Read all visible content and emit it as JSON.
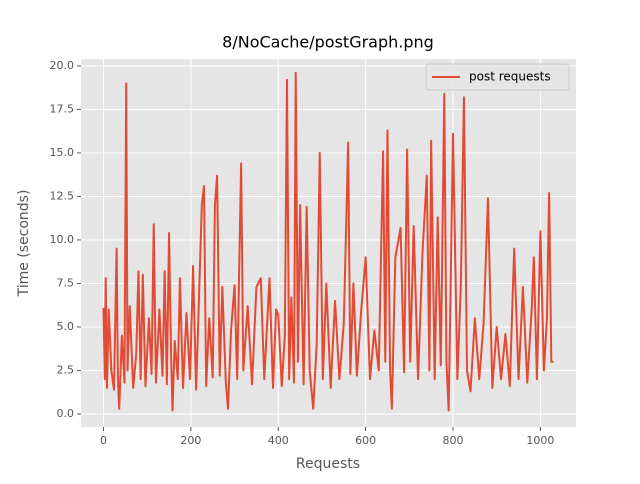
{
  "chart_data": {
    "type": "line",
    "title": "8/NoCache/postGraph.png",
    "x_label": "Requests",
    "y_label": "Time (seconds)",
    "xlim": [
      -51.5,
      1081.5
    ],
    "ylim": [
      -0.75,
      20.4
    ],
    "xticks": [
      0,
      200,
      400,
      600,
      800,
      1000
    ],
    "yticks": [
      {
        "value": 0,
        "label": "0.0"
      },
      2.5,
      {
        "value": 5,
        "label": "5.0"
      },
      7.5,
      {
        "value": 10,
        "label": "10.0"
      },
      12.5,
      {
        "value": 15,
        "label": "15.0"
      },
      17.5,
      {
        "value": 20,
        "label": "20.0"
      }
    ],
    "grid": true,
    "legend": "upper right",
    "series": [
      {
        "name": "post requests",
        "color": "#E24A33",
        "x": [
          0,
          3,
          5,
          8,
          12,
          18,
          24,
          30,
          33,
          36,
          42,
          48,
          52,
          55,
          60,
          68,
          75,
          80,
          85,
          90,
          96,
          104,
          110,
          115,
          120,
          128,
          135,
          140,
          145,
          150,
          155,
          158,
          163,
          170,
          175,
          182,
          190,
          198,
          205,
          212,
          218,
          225,
          230,
          235,
          242,
          250,
          255,
          260,
          266,
          272,
          280,
          285,
          292,
          300,
          306,
          315,
          320,
          330,
          340,
          350,
          360,
          368,
          380,
          388,
          395,
          400,
          408,
          415,
          420,
          425,
          430,
          436,
          440,
          445,
          450,
          458,
          465,
          472,
          480,
          488,
          495,
          502,
          510,
          520,
          530,
          540,
          550,
          560,
          565,
          572,
          580,
          590,
          600,
          610,
          620,
          630,
          640,
          645,
          650,
          656,
          660,
          668,
          680,
          688,
          695,
          702,
          710,
          720,
          730,
          740,
          746,
          750,
          758,
          765,
          772,
          780,
          785,
          790,
          795,
          800,
          810,
          818,
          825,
          832,
          840,
          850,
          860,
          870,
          880,
          890,
          900,
          910,
          920,
          930,
          940,
          950,
          960,
          970,
          980,
          985,
          992,
          1000,
          1008,
          1015,
          1020,
          1025,
          1030
        ],
        "values": [
          6.1,
          2.0,
          7.8,
          1.5,
          6.0,
          2.5,
          1.4,
          9.5,
          2.0,
          0.3,
          4.5,
          1.8,
          19.0,
          2.5,
          6.2,
          1.5,
          3.5,
          8.2,
          2.0,
          8.0,
          1.6,
          5.5,
          2.3,
          10.9,
          1.8,
          6.0,
          2.2,
          8.2,
          1.7,
          10.4,
          3.0,
          0.2,
          4.2,
          2.0,
          7.8,
          1.5,
          5.8,
          2.0,
          8.5,
          1.4,
          6.2,
          12.0,
          13.1,
          1.6,
          5.5,
          2.1,
          12.0,
          13.7,
          2.2,
          7.3,
          1.8,
          0.3,
          4.8,
          7.4,
          2.0,
          14.4,
          2.5,
          6.2,
          1.7,
          7.3,
          7.8,
          2.0,
          7.8,
          1.5,
          6.0,
          5.7,
          1.6,
          4.5,
          19.2,
          2.0,
          6.7,
          1.8,
          19.6,
          3.0,
          12.0,
          1.7,
          11.9,
          2.5,
          0.3,
          4.0,
          15.0,
          2.0,
          7.5,
          1.5,
          6.5,
          2.0,
          5.2,
          15.6,
          2.3,
          7.5,
          2.2,
          6.0,
          9.0,
          2.0,
          4.8,
          2.5,
          15.1,
          3.0,
          16.3,
          2.5,
          0.3,
          9.0,
          10.7,
          2.4,
          15.2,
          3.0,
          10.8,
          2.0,
          9.2,
          13.7,
          2.5,
          15.7,
          2.0,
          11.3,
          2.8,
          18.4,
          3.0,
          0.2,
          8.0,
          16.1,
          2.0,
          7.5,
          18.2,
          2.5,
          1.3,
          5.5,
          2.0,
          5.2,
          12.4,
          1.5,
          5.0,
          2.0,
          4.6,
          1.6,
          9.5,
          2.0,
          7.3,
          1.8,
          6.0,
          9.0,
          2.0,
          10.5,
          2.5,
          5.5,
          12.7,
          3.0,
          3.0
        ]
      }
    ]
  }
}
